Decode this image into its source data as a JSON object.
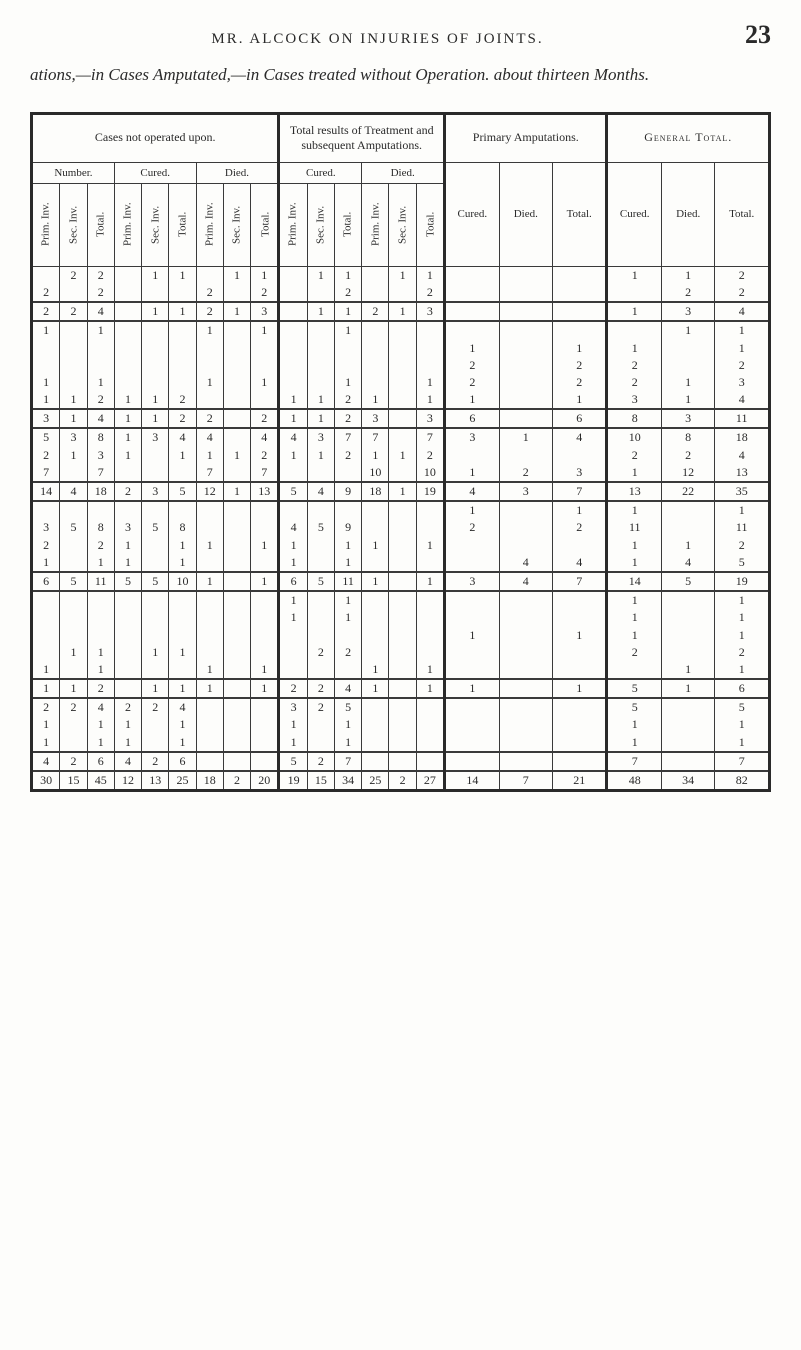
{
  "page": {
    "running_head": "MR. ALCOCK ON INJURIES OF JOINTS.",
    "page_number": "23",
    "title_line": "ations,—in Cases Amputated,—in Cases treated without Operation. about thirteen Months."
  },
  "table": {
    "top_groups": {
      "g1": "Cases not operated upon.",
      "g2": "Total results of Treatment and subsequent Amputations.",
      "g3": "Primary Amputations.",
      "g4": "General Total."
    },
    "sub_groups": {
      "number": "Number.",
      "cured": "Cured.",
      "died": "Died.",
      "cured2": "Cured.",
      "died2": "Died."
    },
    "col_labels": {
      "prim_inv": "Prim. Inv.",
      "sec_inv": "Sec. Inv.",
      "total": "Total.",
      "cured": "Cured.",
      "died": "Died.",
      "total_w": "Total."
    },
    "rows": [
      {
        "c": [
          "",
          "2",
          "2",
          "",
          "1",
          "1",
          "",
          "1",
          "1",
          "",
          "1",
          "1",
          "",
          "1",
          "1",
          "",
          "",
          "",
          "1",
          "1",
          "2"
        ]
      },
      {
        "c": [
          "2",
          "",
          "2",
          "",
          "",
          "",
          "2",
          "",
          "2",
          "",
          "",
          "2",
          "",
          "",
          "2",
          "",
          "",
          "",
          "",
          "2",
          "2"
        ]
      },
      {
        "c": [
          "2",
          "2",
          "4",
          "",
          "1",
          "1",
          "2",
          "1",
          "3",
          "",
          "1",
          "1",
          "2",
          "1",
          "3",
          "",
          "",
          "",
          "1",
          "3",
          "4"
        ]
      },
      {
        "c": [
          "1",
          "",
          "1",
          "",
          "",
          "",
          "1",
          "",
          "1",
          "",
          "",
          "1",
          "",
          "",
          "",
          "",
          "",
          "",
          "",
          "1",
          "1"
        ]
      },
      {
        "c": [
          "",
          "",
          "",
          "",
          "",
          "",
          "",
          "",
          "",
          "",
          "",
          "",
          "",
          "",
          "",
          "1",
          "",
          "1",
          "1",
          "",
          "1"
        ]
      },
      {
        "c": [
          "",
          "",
          "",
          "",
          "",
          "",
          "",
          "",
          "",
          "",
          "",
          "",
          "",
          "",
          "",
          "2",
          "",
          "2",
          "2",
          "",
          "2"
        ]
      },
      {
        "c": [
          "1",
          "",
          "1",
          "",
          "",
          "",
          "1",
          "",
          "1",
          "",
          "",
          "1",
          "",
          "",
          "1",
          "2",
          "",
          "2",
          "2",
          "1",
          "3"
        ]
      },
      {
        "c": [
          "1",
          "1",
          "2",
          "1",
          "1",
          "2",
          "",
          "",
          "",
          "1",
          "1",
          "2",
          "1",
          "",
          "1",
          "1",
          "",
          "1",
          "3",
          "1",
          "4"
        ]
      },
      {
        "c": [
          "3",
          "1",
          "4",
          "1",
          "1",
          "2",
          "2",
          "",
          "2",
          "1",
          "1",
          "2",
          "3",
          "",
          "3",
          "6",
          "",
          "6",
          "8",
          "3",
          "11"
        ]
      },
      {
        "c": [
          "5",
          "3",
          "8",
          "1",
          "3",
          "4",
          "4",
          "",
          "4",
          "4",
          "3",
          "7",
          "7",
          "",
          "7",
          "3",
          "1",
          "4",
          "10",
          "8",
          "18"
        ]
      },
      {
        "c": [
          "2",
          "1",
          "3",
          "1",
          "",
          "1",
          "1",
          "1",
          "2",
          "1",
          "1",
          "2",
          "1",
          "1",
          "2",
          "",
          "",
          "",
          "2",
          "2",
          "4"
        ]
      },
      {
        "c": [
          "7",
          "",
          "7",
          "",
          "",
          "",
          "7",
          "",
          "7",
          "",
          "",
          "",
          "10",
          "",
          "10",
          "1",
          "2",
          "3",
          "1",
          "12",
          "13"
        ]
      },
      {
        "c": [
          "14",
          "4",
          "18",
          "2",
          "3",
          "5",
          "12",
          "1",
          "13",
          "5",
          "4",
          "9",
          "18",
          "1",
          "19",
          "4",
          "3",
          "7",
          "13",
          "22",
          "35"
        ]
      },
      {
        "c": [
          "",
          "",
          "",
          "",
          "",
          "",
          "",
          "",
          "",
          "",
          "",
          "",
          "",
          "",
          "",
          "1",
          "",
          "1",
          "1",
          "",
          "1"
        ]
      },
      {
        "c": [
          "3",
          "5",
          "8",
          "3",
          "5",
          "8",
          "",
          "",
          "",
          "4",
          "5",
          "9",
          "",
          "",
          "",
          "2",
          "",
          "2",
          "11",
          "",
          "11"
        ]
      },
      {
        "c": [
          "2",
          "",
          "2",
          "1",
          "",
          "1",
          "1",
          "",
          "1",
          "1",
          "",
          "1",
          "1",
          "",
          "1",
          "",
          "",
          "",
          "1",
          "1",
          "2"
        ]
      },
      {
        "c": [
          "1",
          "",
          "1",
          "1",
          "",
          "1",
          "",
          "",
          "",
          "1",
          "",
          "1",
          "",
          "",
          "",
          "",
          "4",
          "4",
          "1",
          "4",
          "5"
        ]
      },
      {
        "c": [
          "6",
          "5",
          "11",
          "5",
          "5",
          "10",
          "1",
          "",
          "1",
          "6",
          "5",
          "11",
          "1",
          "",
          "1",
          "3",
          "4",
          "7",
          "14",
          "5",
          "19"
        ]
      },
      {
        "c": [
          "",
          "",
          "",
          "",
          "",
          "",
          "",
          "",
          "",
          "1",
          "",
          "1",
          "",
          "",
          "",
          "",
          "",
          "",
          "1",
          "",
          "1"
        ]
      },
      {
        "c": [
          "",
          "",
          "",
          "",
          "",
          "",
          "",
          "",
          "",
          "1",
          "",
          "1",
          "",
          "",
          "",
          "",
          "",
          "",
          "1",
          "",
          "1"
        ]
      },
      {
        "c": [
          "",
          "",
          "",
          "",
          "",
          "",
          "",
          "",
          "",
          "",
          "",
          "",
          "",
          "",
          "",
          "1",
          "",
          "1",
          "1",
          "",
          "1"
        ]
      },
      {
        "c": [
          "",
          "1",
          "1",
          "",
          "1",
          "1",
          "",
          "",
          "",
          "",
          "2",
          "2",
          "",
          "",
          "",
          "",
          "",
          "",
          "2",
          "",
          "2"
        ]
      },
      {
        "c": [
          "1",
          "",
          "1",
          "",
          "",
          "",
          "1",
          "",
          "1",
          "",
          "",
          "",
          "1",
          "",
          "1",
          "",
          "",
          "",
          "",
          "1",
          "1"
        ]
      },
      {
        "c": [
          "1",
          "1",
          "2",
          "",
          "1",
          "1",
          "1",
          "",
          "1",
          "2",
          "2",
          "4",
          "1",
          "",
          "1",
          "1",
          "",
          "1",
          "5",
          "1",
          "6"
        ]
      },
      {
        "c": [
          "2",
          "2",
          "4",
          "2",
          "2",
          "4",
          "",
          "",
          "",
          "3",
          "2",
          "5",
          "",
          "",
          "",
          "",
          "",
          "",
          "5",
          "",
          "5"
        ]
      },
      {
        "c": [
          "1",
          "",
          "1",
          "1",
          "",
          "1",
          "",
          "",
          "",
          "1",
          "",
          "1",
          "",
          "",
          "",
          "",
          "",
          "",
          "1",
          "",
          "1"
        ]
      },
      {
        "c": [
          "1",
          "",
          "1",
          "1",
          "",
          "1",
          "",
          "",
          "",
          "1",
          "",
          "1",
          "",
          "",
          "",
          "",
          "",
          "",
          "1",
          "",
          "1"
        ]
      },
      {
        "c": [
          "4",
          "2",
          "6",
          "4",
          "2",
          "6",
          "",
          "",
          "",
          "5",
          "2",
          "7",
          "",
          "",
          "",
          "",
          "",
          "",
          "7",
          "",
          "7"
        ]
      },
      {
        "c": [
          "30",
          "15",
          "45",
          "12",
          "13",
          "25",
          "18",
          "2",
          "20",
          "19",
          "15",
          "34",
          "25",
          "2",
          "27",
          "14",
          "7",
          "21",
          "48",
          "34",
          "82"
        ]
      }
    ],
    "section_breaks_after": [
      1,
      2,
      7,
      8,
      11,
      12,
      16,
      17,
      22,
      23,
      26,
      27
    ],
    "grand_total_row": 28
  },
  "style": {
    "background": "#fdfdfb",
    "ink": "#2a2a2a",
    "border": "#3a3a3a",
    "font_body": "Georgia, 'Times New Roman', serif"
  }
}
